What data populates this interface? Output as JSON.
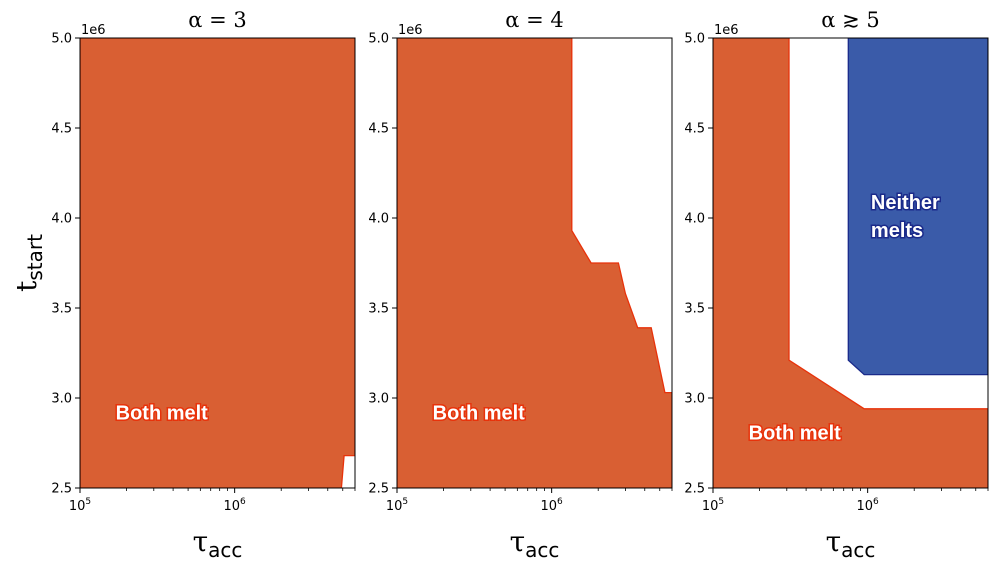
{
  "colors": {
    "both_melt": "#d95f33",
    "both_melt_edge": "#e8320a",
    "neither_melts": "#3a5ba9",
    "neither_melts_edge": "#1a2a8a",
    "background": "#ffffff"
  },
  "y_axis": {
    "label_main": "t",
    "label_sub": "start",
    "offset_label": "1e6",
    "range": [
      2.5,
      5.0
    ],
    "ticks": [
      "2.5",
      "3.0",
      "3.5",
      "4.0",
      "4.5",
      "5.0"
    ]
  },
  "x_axis": {
    "label_main": "τ",
    "label_sub": "acc",
    "scale": "log",
    "range": [
      100000,
      6000000
    ],
    "ticks": [
      {
        "value": 100000,
        "base": "10",
        "exp": "5"
      },
      {
        "value": 1000000,
        "base": "10",
        "exp": "6"
      }
    ]
  },
  "chart_data": [
    {
      "type": "area",
      "title": "α = 3",
      "xscale": "log",
      "xlim": [
        100000,
        6000000
      ],
      "ylim": [
        2.5,
        5.0
      ],
      "regions": [
        {
          "name": "Both melt",
          "color": "#d95f33",
          "label": "Both melt",
          "label_pos": [
            170000,
            2.88
          ],
          "polygon": [
            [
              100000,
              2.5
            ],
            [
              4900000,
              2.5
            ],
            [
              5100000,
              2.68
            ],
            [
              6000000,
              2.68
            ],
            [
              6000000,
              5.0
            ],
            [
              100000,
              5.0
            ]
          ]
        }
      ]
    },
    {
      "type": "area",
      "title": "α = 4",
      "xscale": "log",
      "xlim": [
        100000,
        6000000
      ],
      "ylim": [
        2.5,
        5.0
      ],
      "regions": [
        {
          "name": "Both melt",
          "color": "#d95f33",
          "label": "Both melt",
          "label_pos": [
            170000,
            2.88
          ],
          "polygon": [
            [
              100000,
              2.5
            ],
            [
              6000000,
              2.5
            ],
            [
              6000000,
              3.03
            ],
            [
              5400000,
              3.03
            ],
            [
              4400000,
              3.39
            ],
            [
              3600000,
              3.39
            ],
            [
              3000000,
              3.58
            ],
            [
              2700000,
              3.75
            ],
            [
              1800000,
              3.75
            ],
            [
              1350000,
              3.93
            ],
            [
              1350000,
              5.0
            ],
            [
              100000,
              5.0
            ]
          ]
        }
      ]
    },
    {
      "type": "area",
      "title": "α ≳ 5",
      "xscale": "log",
      "xlim": [
        100000,
        6000000
      ],
      "ylim": [
        2.5,
        5.0
      ],
      "regions": [
        {
          "name": "Both melt",
          "color": "#d95f33",
          "label": "Both melt",
          "label_pos": [
            170000,
            2.77
          ],
          "polygon": [
            [
              100000,
              2.5
            ],
            [
              6000000,
              2.5
            ],
            [
              6000000,
              2.94
            ],
            [
              950000,
              2.94
            ],
            [
              310000,
              3.21
            ],
            [
              310000,
              5.0
            ],
            [
              100000,
              5.0
            ]
          ]
        },
        {
          "name": "Neither melts",
          "color": "#3a5ba9",
          "label_lines": [
            "Neither",
            "melts"
          ],
          "label_pos": [
            1050000,
            4.05
          ],
          "polygon": [
            [
              750000,
              5.0
            ],
            [
              6000000,
              5.0
            ],
            [
              6000000,
              3.13
            ],
            [
              950000,
              3.13
            ],
            [
              750000,
              3.21
            ]
          ]
        }
      ]
    }
  ]
}
